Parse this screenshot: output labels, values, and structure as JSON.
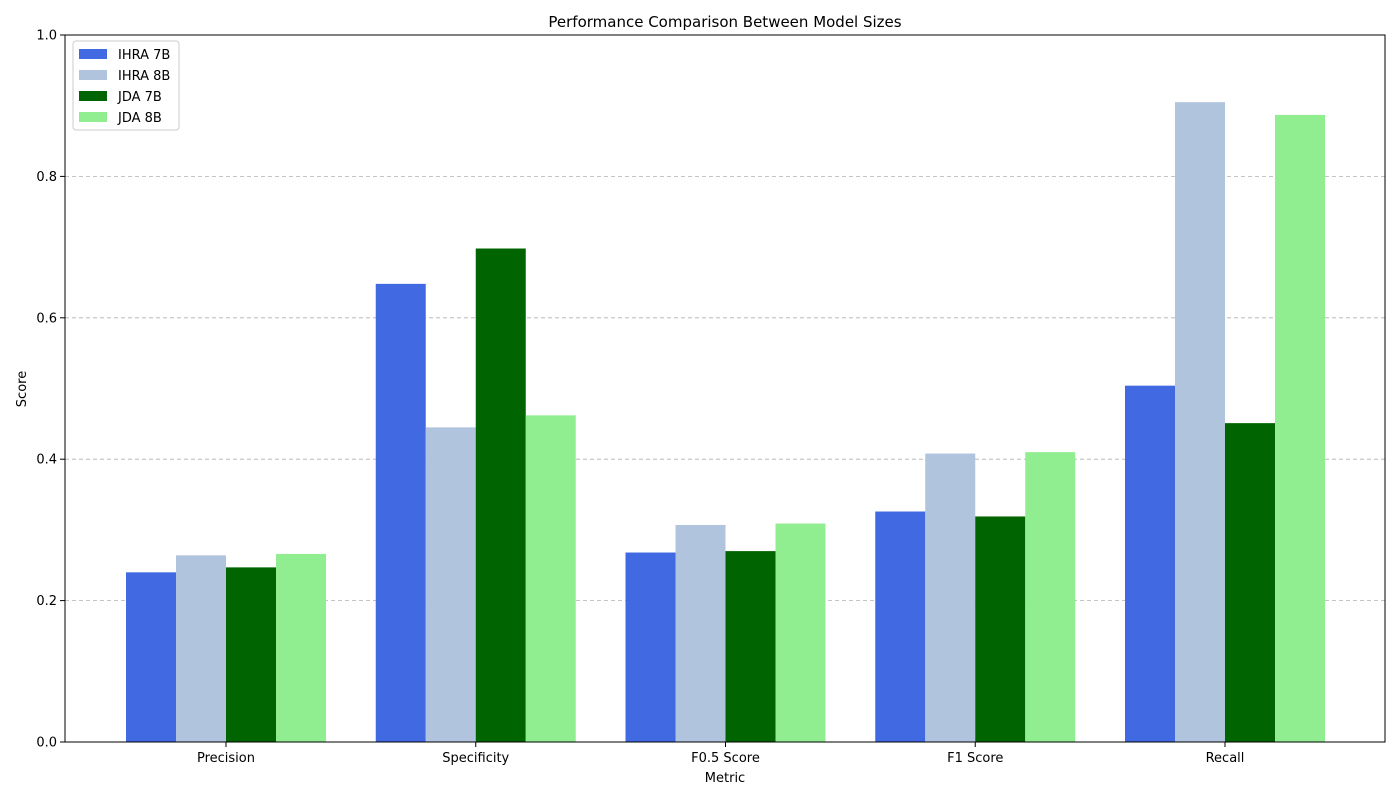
{
  "chart_data": {
    "type": "bar",
    "title": "Performance Comparison Between Model Sizes",
    "xlabel": "Metric",
    "ylabel": "Score",
    "ylim": [
      0,
      1
    ],
    "yticks": [
      "0.0",
      "0.2",
      "0.4",
      "0.6",
      "0.8",
      "1.0"
    ],
    "ytick_values": [
      0,
      0.2,
      0.4,
      0.6,
      0.8,
      1.0
    ],
    "grid": "horizontal dashed",
    "legend_position": "top-left",
    "categories": [
      "Precision",
      "Specificity",
      "F0.5 Score",
      "F1 Score",
      "Recall"
    ],
    "series": [
      {
        "name": "IHRA 7B",
        "color": "#4169E1",
        "values": [
          0.24,
          0.648,
          0.268,
          0.326,
          0.504
        ]
      },
      {
        "name": "IHRA 8B",
        "color": "#B0C4DE",
        "values": [
          0.264,
          0.445,
          0.307,
          0.408,
          0.905
        ]
      },
      {
        "name": "JDA 7B",
        "color": "#006400",
        "values": [
          0.247,
          0.698,
          0.27,
          0.319,
          0.451
        ]
      },
      {
        "name": "JDA 8B",
        "color": "#90EE90",
        "values": [
          0.266,
          0.462,
          0.309,
          0.41,
          0.887
        ]
      }
    ]
  }
}
